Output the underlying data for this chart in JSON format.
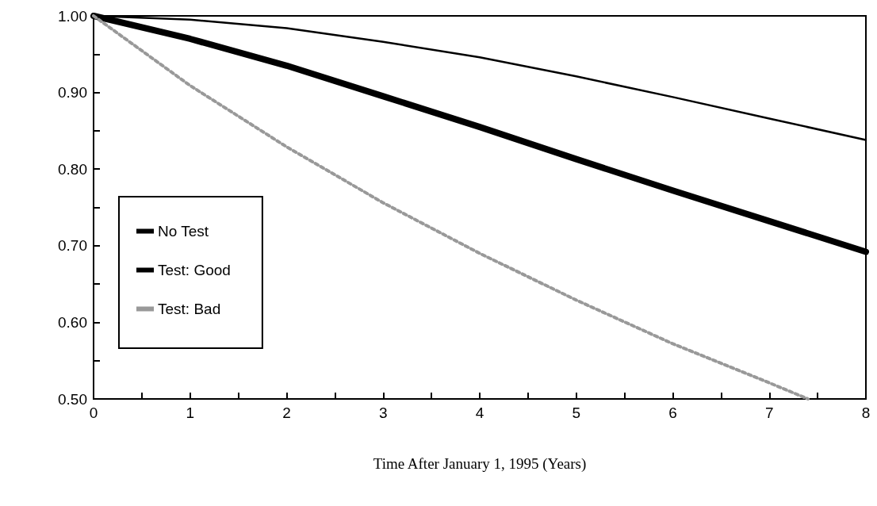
{
  "chart_data": {
    "type": "line",
    "xlabel": "Time After January 1, 1995 (Years)",
    "xlim": [
      0,
      8
    ],
    "xticks": [
      0,
      {
        "value": 0.5,
        "label": null
      },
      1,
      {
        "value": 1.5,
        "label": null
      },
      2,
      {
        "value": 2.5,
        "label": null
      },
      3,
      {
        "value": 3.5,
        "label": null
      },
      4,
      {
        "value": 4.5,
        "label": null
      },
      5,
      {
        "value": 5.5,
        "label": null
      },
      6,
      {
        "value": 6.5,
        "label": null
      },
      7,
      {
        "value": 7.5,
        "label": null
      },
      8
    ],
    "ylim": [
      0.5,
      1
    ],
    "yticks": [
      {
        "value": 0.5,
        "label": "0.50"
      },
      {
        "value": 0.55,
        "label": null
      },
      {
        "value": 0.6,
        "label": "0.60"
      },
      {
        "value": 0.65,
        "label": null
      },
      {
        "value": 0.7,
        "label": "0.70"
      },
      {
        "value": 0.75,
        "label": null
      },
      {
        "value": 0.8,
        "label": "0.80"
      },
      {
        "value": 0.85,
        "label": null
      },
      {
        "value": 0.9,
        "label": "0.90"
      },
      {
        "value": 0.95,
        "label": null
      },
      {
        "value": 1,
        "label": "1.00"
      }
    ],
    "x": [
      0,
      1,
      2,
      3,
      4,
      5,
      6,
      7,
      8
    ],
    "series": [
      {
        "name": "No Test",
        "color": "#000000",
        "line_style": "solid",
        "values": [
          1.0,
          0.97,
          0.935,
          0.895,
          0.855,
          0.813,
          0.772,
          0.732,
          0.692
        ]
      },
      {
        "name": "Test: Good",
        "color": "#000000",
        "line_style": "solid",
        "values": [
          1.0,
          0.995,
          0.984,
          0.966,
          0.946,
          0.921,
          0.894,
          0.866,
          0.838
        ]
      },
      {
        "name": "Test: Bad",
        "color": "#999999",
        "line_style": "dotted",
        "x": [
          0,
          1,
          2,
          3,
          4,
          5,
          6,
          7,
          7.4
        ],
        "values": [
          1.0,
          0.909,
          0.829,
          0.756,
          0.69,
          0.629,
          0.572,
          0.521,
          0.5
        ]
      }
    ],
    "grid": false,
    "legend": "left",
    "marker": "none"
  }
}
